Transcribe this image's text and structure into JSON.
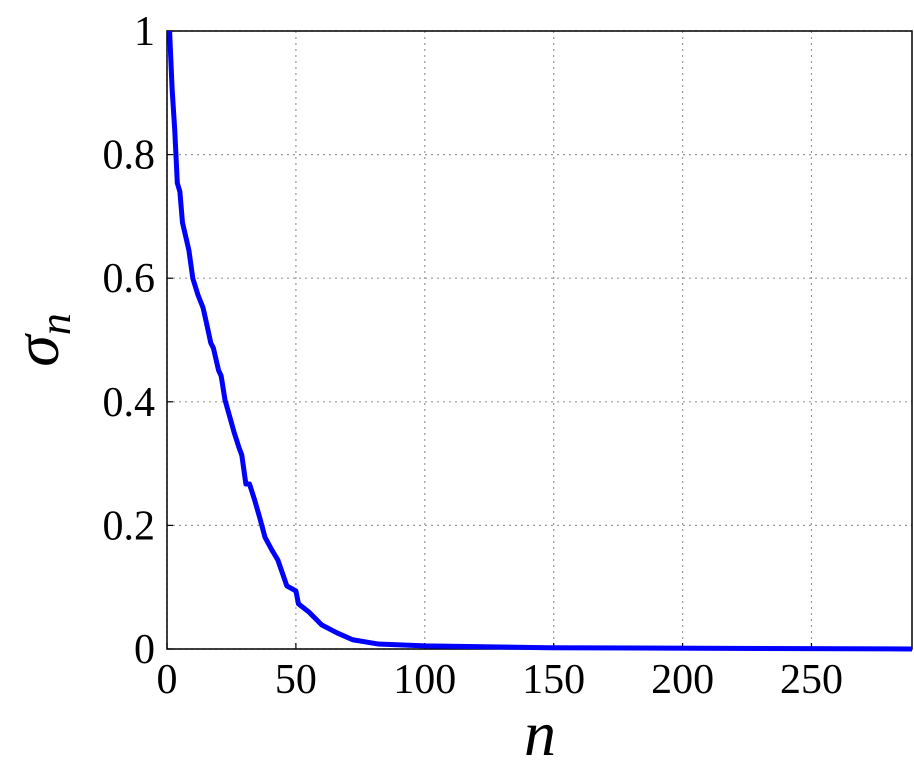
{
  "chart_data": {
    "type": "line",
    "x_label": "n",
    "y_label": {
      "symbol": "σ",
      "subscript": "n"
    },
    "x": [
      1,
      2,
      3,
      4,
      5,
      6,
      7.4,
      8.5,
      10,
      12,
      14,
      15.5,
      17,
      18,
      20,
      21,
      22.5,
      25,
      26,
      28,
      29,
      30.6,
      32,
      34,
      36,
      38,
      40.7,
      43,
      46.5,
      50,
      51,
      55,
      60,
      66,
      72,
      82,
      100,
      148,
      289
    ],
    "series": [
      {
        "color": "#0000ff",
        "values": [
          1.0,
          0.905,
          0.84,
          0.754,
          0.74,
          0.69,
          0.665,
          0.645,
          0.6,
          0.573,
          0.552,
          0.524,
          0.495,
          0.487,
          0.451,
          0.442,
          0.403,
          0.366,
          0.351,
          0.325,
          0.314,
          0.267,
          0.267,
          0.241,
          0.212,
          0.181,
          0.16,
          0.144,
          0.102,
          0.094,
          0.073,
          0.06,
          0.039,
          0.026,
          0.015,
          0.008,
          0.005,
          0.002,
          0.0
        ]
      }
    ],
    "xlim": [
      0,
      289
    ],
    "ylim": [
      0,
      1
    ],
    "xticks": [
      0,
      50,
      100,
      150,
      200,
      250
    ],
    "yticks": [
      0,
      0.2,
      0.4,
      0.6,
      0.8,
      1
    ],
    "grid": true
  }
}
